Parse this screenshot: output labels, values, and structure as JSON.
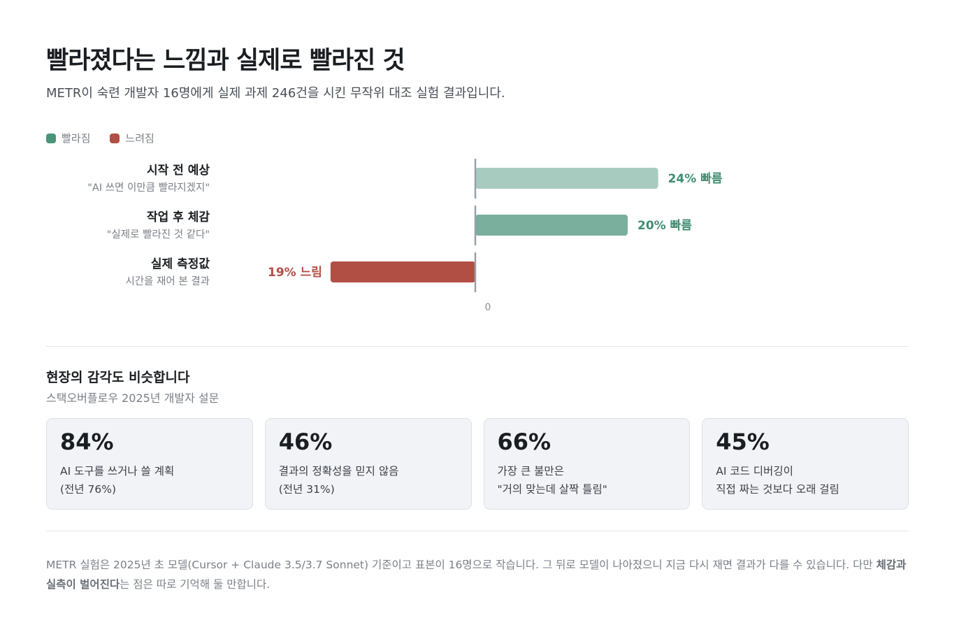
{
  "title": "빨라졌다는 느낌과 실제로 빨라진 것",
  "subtitle": "METR이 숙련 개발자 16명에게 실제 과제 246건을 시킨 무작위 대조 실험 결과입니다.",
  "legend": [
    {
      "label": "빨라짐",
      "color": "#4a9479"
    },
    {
      "label": "느려짐",
      "color": "#b24f45"
    }
  ],
  "chart_data": {
    "type": "bar",
    "orientation": "horizontal",
    "categories": [
      "시작 전 예상",
      "작업 후 체감",
      "실제 측정값"
    ],
    "category_subtitles": [
      "\"AI 쓰면 이만큼 빨라지겠지\"",
      "\"실제로 빨라진 것 같다\"",
      "시간을 재어 본 결과"
    ],
    "values": [
      24,
      20,
      -19
    ],
    "value_labels": [
      "24% 빠름",
      "20% 빠름",
      "19% 느림"
    ],
    "bar_colors": [
      "#a7cbbf",
      "#7aae9d",
      "#b24f45"
    ],
    "label_colors": [
      "#3f8d70",
      "#3f8d70",
      "#b24f45"
    ],
    "zero_tick": "0",
    "grid": false,
    "legend": "top-left"
  },
  "survey": {
    "title": "현장의 감각도 비슷합니다",
    "source": "스택오버플로우 2025년 개발자 설문",
    "cards": [
      {
        "stat": "84%",
        "line1": "AI 도구를 쓰거나 쓸 계획",
        "line2": "(전년 76%)"
      },
      {
        "stat": "46%",
        "line1": "결과의 정확성을 믿지 않음",
        "line2": "(전년 31%)"
      },
      {
        "stat": "66%",
        "line1": "가장 큰 불만은",
        "line2": "\"거의 맞는데 살짝 틀림\""
      },
      {
        "stat": "45%",
        "line1": "AI 코드 디버깅이",
        "line2": "직접 짜는 것보다 오래 걸림"
      }
    ]
  },
  "footnote": {
    "text_before": "METR 실험은 2025년 초 모델(Cursor + Claude 3.5/3.7 Sonnet) 기준이고 표본이 16명으로 작습니다. 그 뒤로 모델이 나아졌으니 지금 다시 재면 결과가 다를 수 있습니다. 다만 ",
    "bold": "체감과 실측이 벌어진다",
    "text_after": "는 점은 따로 기억해 둘 만합니다."
  }
}
